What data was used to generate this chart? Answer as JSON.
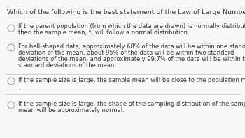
{
  "title": "Which of the following is the best statement of the Law of Large Numbers?",
  "option1_line1": "If the parent population (from which the data are drawn) is normally distributed,",
  "option1_line2": "then the sample mean, ᴴ, will follow a normal distribution.",
  "option2_line1": "For bell-shaped data, approximately 68% of the data will be within one standard",
  "option2_line2": "deviation of the mean, about 95% of the data will be within two standard",
  "option2_line3": "deviations of the mean, and approximately 99.7% of the data will be within three",
  "option2_line4": "standard deviations of the mean.",
  "option3_line1": "If the sample size is large, the sample mean will be close to the population mean μ",
  "option4_line1": "If the sample size is large, the shape of the sampling distribution of the sample",
  "option4_line2": "mean will be approximately normal.",
  "bg_color": "#f7f7f5",
  "text_color": "#3a3a3a",
  "title_fontsize": 6.8,
  "option_fontsize": 6.0,
  "circle_color": "#999999",
  "divider_color": "#d0d0d0"
}
